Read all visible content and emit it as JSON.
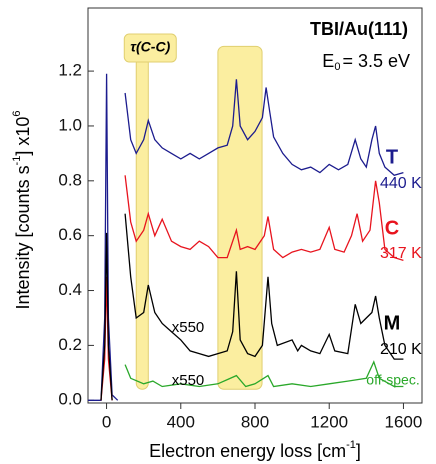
{
  "chart_data": {
    "type": "line",
    "title": "TBI/Au(111)",
    "subtitle": {
      "parts": [
        "E",
        "0",
        "= 3.5 eV"
      ]
    },
    "x_label": {
      "parts": [
        "Electron energy loss [cm",
        "-1",
        "]"
      ]
    },
    "y_label": {
      "parts": [
        "Intensity [counts s",
        "-1",
        "] x10",
        "6"
      ]
    },
    "xlim": [
      -100,
      1700
    ],
    "ylim": [
      -0.01,
      1.43
    ],
    "xticks": [
      0,
      400,
      800,
      1200,
      1600
    ],
    "yticks": [
      {
        "value": 0,
        "label": "0.0"
      },
      {
        "value": 0.2,
        "label": "0.2"
      },
      {
        "value": 0.4,
        "label": "0.4"
      },
      {
        "value": 0.6,
        "label": "0.6"
      },
      {
        "value": 0.8,
        "label": "0.8"
      },
      {
        "value": 1.0,
        "label": "1.0"
      },
      {
        "value": 1.2,
        "label": "1.2"
      }
    ],
    "highlights": [
      {
        "x": [
          160,
          225
        ],
        "y": [
          0.04,
          1.25
        ],
        "color": "#fbeea0",
        "label": "τ(C-C)"
      },
      {
        "x": [
          600,
          838
        ],
        "y": [
          0.04,
          1.29
        ],
        "color": "#fbeea0"
      }
    ],
    "annotations": [
      "x550",
      "x550"
    ],
    "series": [
      {
        "name": "T",
        "temperature": "440 K",
        "color": "#1c1c8e",
        "x": [
          -100,
          -30,
          -10,
          0,
          10,
          30,
          60,
          null,
          100,
          130,
          160,
          200,
          225,
          260,
          300,
          350,
          400,
          450,
          500,
          550,
          600,
          650,
          680,
          700,
          720,
          760,
          800,
          840,
          860,
          880,
          900,
          950,
          1000,
          1050,
          1100,
          1150,
          1200,
          1250,
          1300,
          1340,
          1370,
          1400,
          1430,
          1450,
          1470,
          1500,
          1550,
          1600
        ],
        "values": [
          0,
          0,
          0.3,
          1.19,
          0.3,
          0.02,
          0,
          null,
          1.12,
          0.95,
          0.9,
          0.95,
          1.02,
          0.95,
          0.92,
          0.9,
          0.88,
          0.9,
          0.88,
          0.9,
          0.92,
          0.93,
          1.0,
          1.17,
          1.0,
          0.95,
          0.98,
          1.03,
          1.14,
          1.05,
          0.96,
          0.9,
          0.86,
          0.84,
          0.85,
          0.83,
          0.86,
          0.84,
          0.86,
          0.95,
          0.88,
          0.85,
          0.95,
          1.0,
          0.9,
          0.85,
          0.82,
          0.83
        ]
      },
      {
        "name": "C",
        "temperature": "317 K",
        "color": "#e8141e",
        "x": [
          -30,
          -10,
          0,
          10,
          30,
          null,
          100,
          130,
          160,
          200,
          225,
          260,
          300,
          350,
          400,
          450,
          500,
          550,
          600,
          650,
          700,
          720,
          760,
          800,
          850,
          870,
          900,
          950,
          1000,
          1050,
          1100,
          1150,
          1200,
          1230,
          1280,
          1320,
          1350,
          1380,
          1420,
          1450,
          1470,
          1500,
          1550,
          1600
        ],
        "values": [
          0,
          0.15,
          0.45,
          0.15,
          0,
          null,
          0.82,
          0.65,
          0.58,
          0.62,
          0.68,
          0.6,
          0.66,
          0.58,
          0.56,
          0.55,
          0.58,
          0.56,
          0.52,
          0.52,
          0.62,
          0.55,
          0.56,
          0.55,
          0.6,
          0.67,
          0.55,
          0.52,
          0.54,
          0.55,
          0.54,
          0.55,
          0.63,
          0.55,
          0.54,
          0.6,
          0.68,
          0.58,
          0.62,
          0.8,
          0.72,
          0.55,
          0.52,
          0.51
        ]
      },
      {
        "name": "M",
        "temperature": "210 K",
        "color": "#000000",
        "x": [
          -30,
          -10,
          0,
          10,
          30,
          null,
          100,
          130,
          160,
          200,
          225,
          260,
          300,
          350,
          400,
          450,
          500,
          550,
          600,
          650,
          680,
          700,
          720,
          760,
          800,
          840,
          870,
          890,
          920,
          1000,
          1030,
          1050,
          1100,
          1150,
          1200,
          1230,
          1300,
          1340,
          1370,
          1400,
          1430,
          1450,
          1470,
          1500,
          1550,
          1600
        ],
        "values": [
          0,
          0.2,
          0.61,
          0.2,
          0,
          null,
          0.68,
          0.45,
          0.3,
          0.32,
          0.42,
          0.32,
          0.28,
          0.25,
          0.22,
          0.18,
          0.17,
          0.16,
          0.17,
          0.18,
          0.25,
          0.47,
          0.22,
          0.17,
          0.16,
          0.2,
          0.45,
          0.28,
          0.2,
          0.22,
          0.18,
          0.2,
          0.18,
          0.17,
          0.24,
          0.18,
          0.17,
          0.35,
          0.28,
          0.3,
          0.32,
          0.38,
          0.3,
          0.2,
          0.15,
          0.15
        ]
      },
      {
        "name": "off-spec.",
        "color": "#2aa82a",
        "x": [
          100,
          130,
          200,
          250,
          300,
          400,
          500,
          600,
          700,
          750,
          800,
          870,
          900,
          1000,
          1100,
          1200,
          1300,
          1400,
          1440,
          1470,
          1550,
          1600
        ],
        "values": [
          0.13,
          0.08,
          0.06,
          0.07,
          0.05,
          0.06,
          0.05,
          0.06,
          0.09,
          0.05,
          0.06,
          0.09,
          0.05,
          0.06,
          0.05,
          0.06,
          0.07,
          0.08,
          0.14,
          0.08,
          0.05,
          0.05
        ]
      }
    ]
  }
}
